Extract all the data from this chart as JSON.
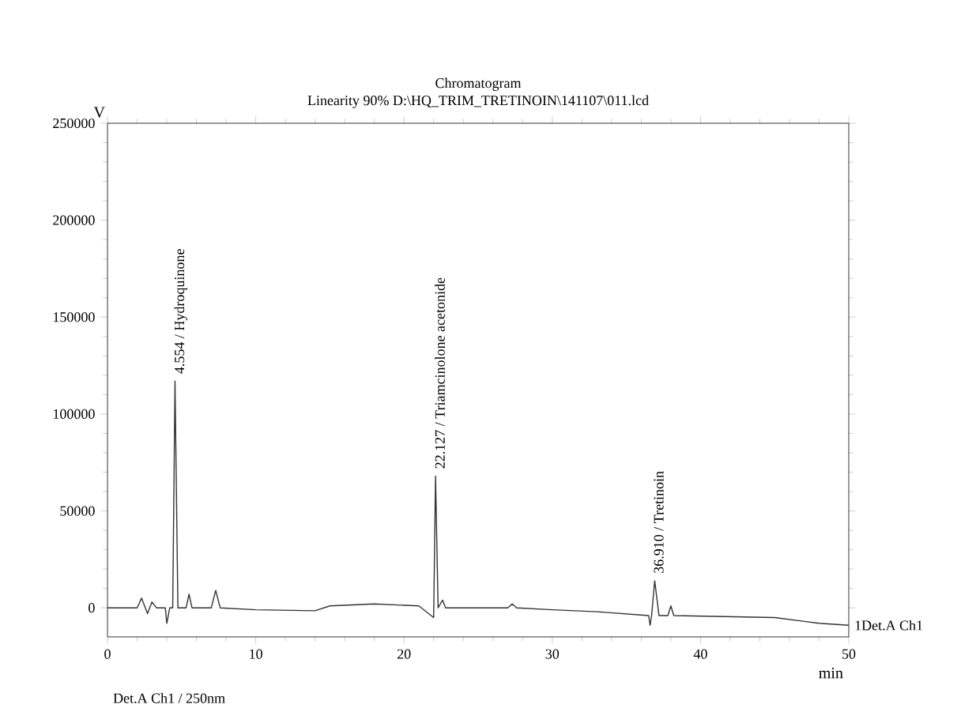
{
  "chart_data": {
    "type": "line",
    "title": "Chromatogram",
    "subtitle": "Linearity 90%  D:\\HQ_TRIM_TRETINOIN\\141107\\011.lcd",
    "xlabel": "min",
    "ylabel": "V",
    "x": [
      0,
      2,
      2.3,
      2.7,
      3.0,
      3.3,
      3.9,
      4.0,
      4.2,
      4.4,
      4.554,
      4.75,
      5.3,
      5.5,
      5.7,
      7.0,
      7.3,
      7.6,
      10,
      14,
      15,
      18,
      21,
      22.0,
      22.127,
      22.3,
      22.6,
      22.8,
      27,
      27.3,
      27.6,
      30,
      33,
      36.5,
      36.6,
      36.7,
      36.91,
      37.2,
      37.8,
      38.0,
      38.2,
      45,
      48,
      50
    ],
    "series": [
      {
        "color": "#333333",
        "line_style": "solid",
        "values": [
          0,
          0,
          5000,
          -3000,
          3000,
          0,
          0,
          -8000,
          0,
          0,
          117000,
          0,
          0,
          7000,
          0,
          0,
          9000,
          0,
          -1000,
          -1500,
          1000,
          2000,
          1000,
          -5000,
          68000,
          0,
          4000,
          0,
          0,
          2000,
          0,
          -1000,
          -2000,
          -4000,
          -9000,
          -4000,
          14000,
          -4000,
          -4000,
          1000,
          -4000,
          -5000,
          -8000,
          -9000
        ]
      }
    ],
    "xlim": [
      0,
      50
    ],
    "ylim": [
      -15000,
      250000
    ],
    "xticks": [
      0,
      10,
      20,
      30,
      40,
      50
    ],
    "yticks": [
      0,
      50000,
      100000,
      150000,
      200000,
      250000
    ],
    "annotations": [
      {
        "text": "4.554 / Hydroquinone",
        "x": 4.554,
        "y": 117000
      },
      {
        "text": "22.127 / Triamcinolone acetonide",
        "x": 22.127,
        "y": 68000
      },
      {
        "text": "36.910 / Tretinoin",
        "x": 36.91,
        "y": 14000
      },
      {
        "text": "1Det.A Ch1",
        "x": 50,
        "y": -9000
      },
      "Det.A Ch1 / 250nm"
    ]
  }
}
